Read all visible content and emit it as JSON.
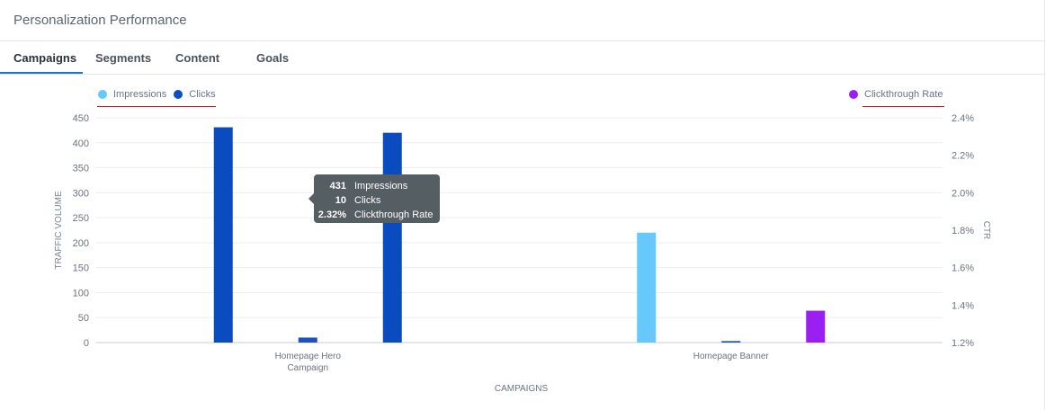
{
  "panel": {
    "title": "Personalization Performance"
  },
  "tabs": [
    {
      "label": "Campaigns",
      "active": true
    },
    {
      "label": "Segments",
      "active": false
    },
    {
      "label": "Content",
      "active": false
    },
    {
      "label": "Goals",
      "active": false
    }
  ],
  "legend": {
    "left": [
      {
        "label": "Impressions",
        "color": "#66c8fb"
      },
      {
        "label": "Clicks",
        "color": "#0b50c3"
      }
    ],
    "right": [
      {
        "label": "Clickthrough Rate",
        "color": "#9b1ff0"
      }
    ]
  },
  "tooltip": {
    "rows": [
      {
        "value": "431",
        "label": "Impressions"
      },
      {
        "value": "10",
        "label": "Clicks"
      },
      {
        "value": "2.32%",
        "label": "Clickthrough Rate"
      }
    ]
  },
  "chart_data": {
    "type": "bar",
    "categories": [
      "Homepage Hero Campaign",
      "Homepage Banner"
    ],
    "category_lines": [
      [
        "Homepage Hero",
        "Campaign"
      ],
      [
        "Homepage Banner"
      ]
    ],
    "series": [
      {
        "name": "Impressions",
        "axis": "left",
        "color": "#0b4bc0",
        "highlight_color": "#66c8fb",
        "values": [
          431,
          220
        ]
      },
      {
        "name": "Clicks",
        "axis": "left",
        "color": "#1a52c2",
        "values": [
          10,
          3
        ]
      },
      {
        "name": "Clickthrough Rate",
        "axis": "right",
        "color": "#0b4bc0",
        "highlight_color": "#9b1ff0",
        "values": [
          2.32,
          1.37
        ]
      }
    ],
    "highlighted_category": 1,
    "xlabel": "CAMPAIGNS",
    "ylabel": "TRAFFIC VOLUME",
    "y2label": "CTR",
    "ylim": [
      0,
      450
    ],
    "yticks": [
      0,
      50,
      100,
      150,
      200,
      250,
      300,
      350,
      400,
      450
    ],
    "ytick_labels": [
      "0",
      "50",
      "100",
      "150",
      "200",
      "250",
      "300",
      "350",
      "400",
      "450"
    ],
    "y2lim": [
      1.2,
      2.4
    ],
    "y2ticks": [
      1.2,
      1.4,
      1.6,
      1.8,
      2.0,
      2.2,
      2.4
    ],
    "y2tick_labels": [
      "1.2%",
      "1.4%",
      "1.6%",
      "1.8%",
      "2.0%",
      "2.2%",
      "2.4%"
    ],
    "grid": true,
    "legend_position": "top"
  }
}
